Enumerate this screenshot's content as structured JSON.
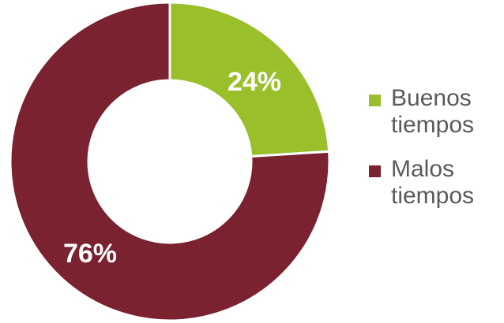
{
  "chart_data": {
    "type": "pie",
    "donut": true,
    "categories": [
      "Buenos tiempos",
      "Malos tiempos"
    ],
    "values": [
      24,
      76
    ],
    "value_labels": [
      "24%",
      "76%"
    ],
    "colors": [
      "#99bf2b",
      "#7a2230"
    ],
    "legend_position": "right",
    "start_angle": "12 o'clock, clockwise"
  }
}
